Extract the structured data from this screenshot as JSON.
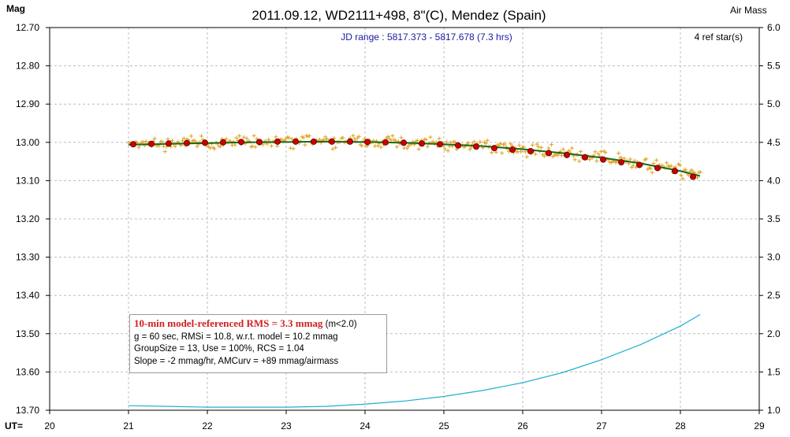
{
  "chart_data": {
    "type": "scatter",
    "title": "2011.09.12, WD2111+498, 8\"(C), Mendez (Spain)",
    "subtitle": "JD range : 5817.373 - 5817.678 (7.3 hrs)",
    "ref_stars": "4 ref star(s)",
    "ylabel_left": "Mag",
    "ylabel_right": "Air Mass",
    "xlabel": "UT=",
    "xlim": [
      20,
      29
    ],
    "ylim_left": [
      12.7,
      13.7
    ],
    "ylim_right": [
      1.0,
      6.0
    ],
    "y_left_inverted": true,
    "x_ticks": [
      "20",
      "21",
      "22",
      "23",
      "24",
      "25",
      "26",
      "27",
      "28",
      "29"
    ],
    "y_left_ticks": [
      "12.70",
      "12.80",
      "12.90",
      "13.00",
      "13.10",
      "13.20",
      "13.30",
      "13.40",
      "13.50",
      "13.60",
      "13.70"
    ],
    "y_right_ticks": [
      "6.0",
      "5.5",
      "5.0",
      "4.5",
      "4.0",
      "3.5",
      "3.0",
      "2.5",
      "2.0",
      "1.5",
      "1.0"
    ],
    "grid": true,
    "colors": {
      "raw_points": "#e0a020",
      "binned_points": "#cc0000",
      "model_curve": "#1a6a1a",
      "airmass_curve": "#20b0d0",
      "grid": "#bdbdbd"
    },
    "series": [
      {
        "kind": "binned",
        "axis": "left",
        "x": [
          21.06,
          21.29,
          21.51,
          21.74,
          21.97,
          22.2,
          22.43,
          22.66,
          22.89,
          23.12,
          23.35,
          23.58,
          23.81,
          24.03,
          24.26,
          24.49,
          24.72,
          24.95,
          25.18,
          25.41,
          25.64,
          25.87,
          26.1,
          26.33,
          26.56,
          26.79,
          27.02,
          27.25,
          27.48,
          27.71,
          27.93,
          28.16
        ],
        "y": [
          13.005,
          13.004,
          13.003,
          13.002,
          13.001,
          13.0,
          12.999,
          12.999,
          12.998,
          12.998,
          12.998,
          12.998,
          12.998,
          12.999,
          13.0,
          13.001,
          13.003,
          13.005,
          13.008,
          13.011,
          13.015,
          13.019,
          13.023,
          13.028,
          13.033,
          13.039,
          13.045,
          13.052,
          13.059,
          13.067,
          13.075,
          13.09
        ]
      },
      {
        "kind": "model",
        "axis": "left",
        "x": [
          21.0,
          21.5,
          22.0,
          22.5,
          23.0,
          23.5,
          24.0,
          24.5,
          25.0,
          25.5,
          26.0,
          26.5,
          27.0,
          27.5,
          28.0,
          28.25
        ],
        "y": [
          13.006,
          13.004,
          13.002,
          13.0,
          12.999,
          12.998,
          12.999,
          13.001,
          13.005,
          13.01,
          13.018,
          13.028,
          13.04,
          13.055,
          13.075,
          13.088
        ]
      },
      {
        "kind": "airmass",
        "axis": "right",
        "x": [
          21.0,
          21.5,
          22.0,
          22.5,
          23.0,
          23.5,
          24.0,
          24.5,
          25.0,
          25.5,
          26.0,
          26.5,
          27.0,
          27.5,
          28.0,
          28.25
        ],
        "y": [
          1.06,
          1.05,
          1.04,
          1.04,
          1.04,
          1.05,
          1.08,
          1.12,
          1.18,
          1.26,
          1.36,
          1.49,
          1.66,
          1.86,
          2.1,
          2.25
        ]
      }
    ]
  },
  "legend": {
    "line1_highlight": "10-min model-referenced RMS = 3.3 mmag",
    "line1_suffix": " (m<2.0)",
    "line2": "g = 60 sec, RMSi = 10.8, w.r.t. model = 10.2 mmag",
    "line3": "GroupSize = 13, Use = 100%, RCS = 1.04",
    "line4": "Slope = -2 mmag/hr, AMCurv = +89 mmag/airmass"
  }
}
